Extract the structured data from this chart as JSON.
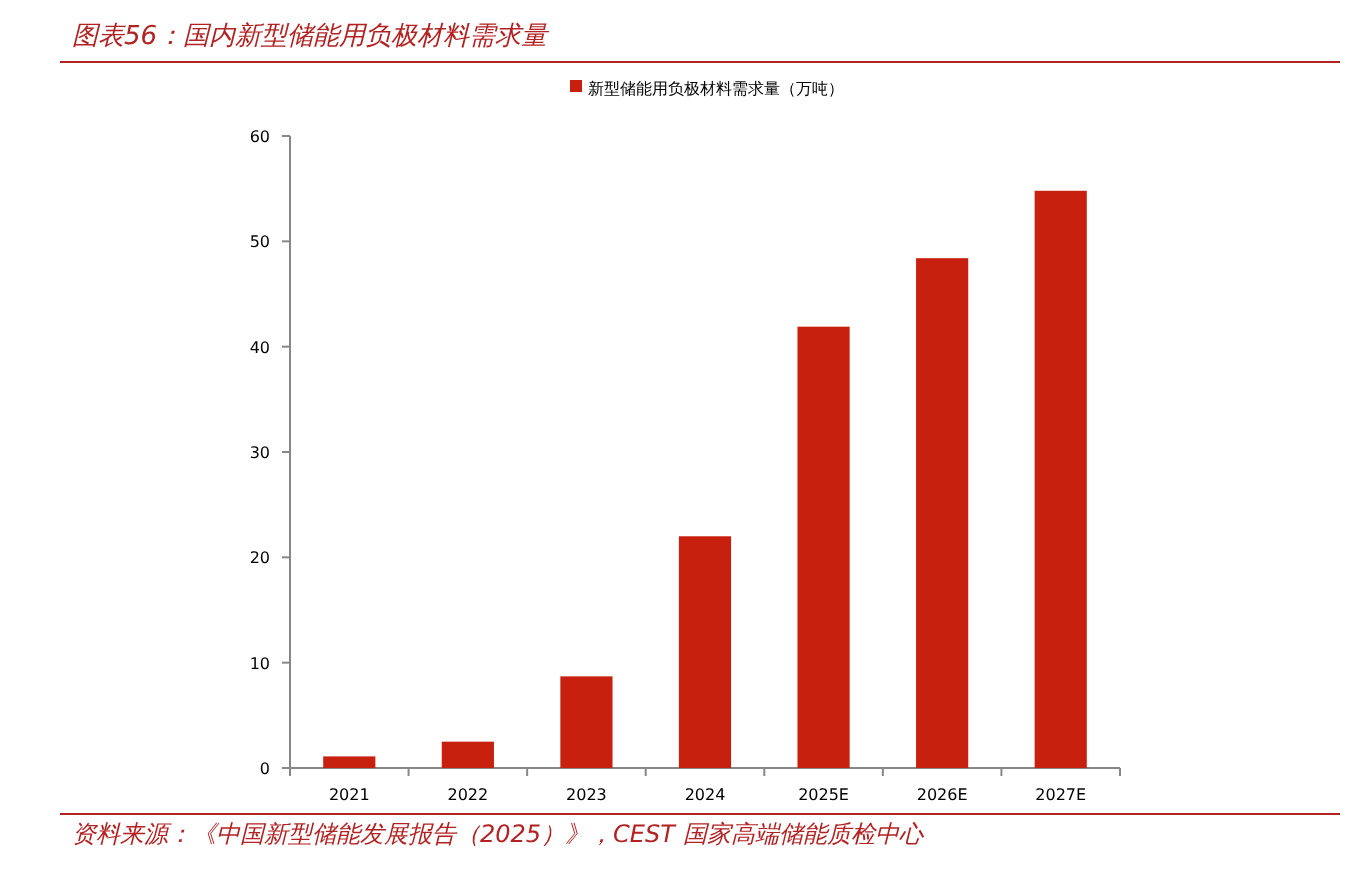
{
  "chart_data": {
    "type": "bar",
    "title": "图表56：国内新型储能用负极材料需求量",
    "categories": [
      "2021",
      "2022",
      "2023",
      "2024",
      "2025E",
      "2026E",
      "2027E"
    ],
    "series": [
      {
        "name": "新型储能用负极材料需求量（万吨）",
        "color": "#c8200e",
        "values": [
          1.1,
          2.5,
          8.7,
          22.0,
          41.9,
          48.4,
          54.8
        ]
      }
    ],
    "ylim": [
      0,
      60
    ],
    "yticks": [
      0,
      10,
      20,
      30,
      40,
      50,
      60
    ],
    "grid": false,
    "legend": "top",
    "annotations": [
      "资料来源：《中国新型储能发展报告（2025）》，CEST 国家高端储能质检中心"
    ]
  }
}
